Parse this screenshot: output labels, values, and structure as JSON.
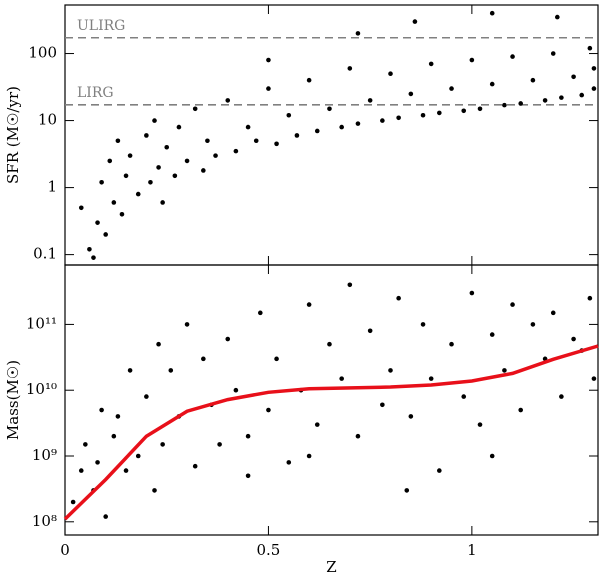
{
  "chart_data": [
    {
      "type": "scatter",
      "ylabel": "SFR (M☉/yr)",
      "log_y": true,
      "color": "#000000",
      "xlim": [
        0,
        1.31
      ],
      "xticks": [
        0,
        0.5,
        1
      ],
      "xtick_labels": false,
      "ylim": [
        0.07,
        530
      ],
      "yticks": [
        0.1,
        1,
        10,
        100
      ],
      "reference_lines": [
        {
          "label": "ULIRG",
          "value": 172,
          "color": "#808080"
        },
        {
          "label": "LIRG",
          "value": 17.2,
          "color": "#808080"
        }
      ],
      "points": {
        "x": [
          0.04,
          0.06,
          0.07,
          0.08,
          0.09,
          0.1,
          0.11,
          0.12,
          0.13,
          0.14,
          0.15,
          0.16,
          0.18,
          0.2,
          0.21,
          0.22,
          0.23,
          0.24,
          0.25,
          0.27,
          0.28,
          0.3,
          0.32,
          0.34,
          0.35,
          0.37,
          0.4,
          0.42,
          0.45,
          0.47,
          0.5,
          0.52,
          0.55,
          0.57,
          0.6,
          0.62,
          0.65,
          0.68,
          0.7,
          0.72,
          0.75,
          0.78,
          0.8,
          0.82,
          0.85,
          0.88,
          0.9,
          0.92,
          0.95,
          0.98,
          1.0,
          1.02,
          1.05,
          1.08,
          1.1,
          1.12,
          1.15,
          1.18,
          1.2,
          1.22,
          1.25,
          1.27,
          1.29,
          1.3,
          0.86,
          1.05,
          1.21,
          0.72,
          0.5,
          1.3
        ],
        "values": [
          0.5,
          0.12,
          0.09,
          0.3,
          1.2,
          0.2,
          2.5,
          0.6,
          5,
          0.4,
          1.5,
          3,
          0.8,
          6,
          1.2,
          10,
          2,
          0.6,
          4,
          1.5,
          8,
          2.5,
          15,
          1.8,
          5,
          3,
          20,
          3.5,
          8,
          5,
          30,
          4.5,
          12,
          6,
          40,
          7,
          15,
          8,
          60,
          9,
          20,
          10,
          50,
          11,
          25,
          12,
          70,
          13,
          30,
          14,
          80,
          15,
          35,
          17,
          90,
          18,
          40,
          20,
          100,
          22,
          45,
          24,
          120,
          30,
          300,
          400,
          350,
          200,
          80,
          60
        ]
      }
    },
    {
      "type": "scatter",
      "xlabel": "Z",
      "ylabel": "Mass(M☉)",
      "log_y": true,
      "color": "#000000",
      "xlim": [
        0,
        1.31
      ],
      "xticks": [
        0,
        0.5,
        1
      ],
      "xtick_labels": true,
      "ylim": [
        63000000,
        800000000000
      ],
      "yticks": [
        {
          "value": 100000000,
          "label": "10⁸"
        },
        {
          "value": 1000000000,
          "label": "10⁹"
        },
        {
          "value": 10000000000,
          "label": "10¹⁰"
        },
        {
          "value": 100000000000,
          "label": "10¹¹"
        }
      ],
      "points": {
        "x": [
          0.02,
          0.04,
          0.05,
          0.07,
          0.08,
          0.09,
          0.1,
          0.12,
          0.13,
          0.15,
          0.16,
          0.18,
          0.2,
          0.22,
          0.23,
          0.24,
          0.26,
          0.28,
          0.3,
          0.32,
          0.34,
          0.36,
          0.38,
          0.4,
          0.42,
          0.45,
          0.48,
          0.5,
          0.52,
          0.55,
          0.58,
          0.6,
          0.62,
          0.65,
          0.68,
          0.7,
          0.72,
          0.75,
          0.78,
          0.8,
          0.82,
          0.85,
          0.88,
          0.9,
          0.92,
          0.95,
          0.98,
          1.0,
          1.02,
          1.05,
          1.08,
          1.1,
          1.12,
          1.15,
          1.18,
          1.2,
          1.22,
          1.25,
          1.27,
          1.29,
          1.3,
          0.6,
          0.84,
          1.05,
          0.45
        ],
        "values": [
          200000000,
          600000000,
          1500000000,
          300000000,
          800000000,
          5000000000,
          120000000,
          2000000000,
          4000000000,
          600000000,
          20000000000,
          1000000000,
          8000000000,
          300000000,
          50000000000,
          1500000000,
          20000000000,
          4000000000,
          100000000000,
          700000000,
          30000000000,
          6000000000,
          1500000000,
          60000000000,
          10000000000,
          2000000000,
          150000000000,
          5000000000,
          30000000000,
          800000000,
          10000000000,
          200000000000,
          3000000000,
          50000000000,
          15000000000,
          400000000000,
          2000000000,
          80000000000,
          6000000000,
          20000000000,
          250000000000,
          4000000000,
          100000000000,
          15000000000,
          600000000,
          50000000000,
          8000000000,
          300000000000,
          3000000000,
          70000000000,
          20000000000,
          200000000000,
          5000000000,
          100000000000,
          30000000000,
          150000000000,
          8000000000,
          60000000000,
          40000000000,
          250000000000,
          15000000000,
          1000000000,
          300000000,
          1000000000,
          500000000
        ]
      },
      "median": {
        "color": "#e8101a",
        "x": [
          0,
          0.1,
          0.2,
          0.3,
          0.4,
          0.5,
          0.6,
          0.8,
          0.9,
          1.0,
          1.1,
          1.2,
          1.31
        ],
        "values": [
          110000000,
          440000000,
          2000000000,
          4800000000,
          7200000000,
          9300000000,
          10500000000,
          11200000000,
          12000000000,
          13800000000,
          18000000000,
          29500000000,
          47000000000
        ]
      }
    }
  ]
}
